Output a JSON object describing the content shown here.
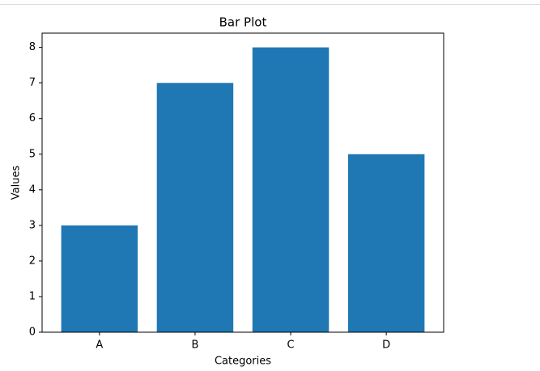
{
  "chart_data": {
    "type": "bar",
    "title": "Bar Plot",
    "x_label": "Categories",
    "y_label": "Values",
    "categories": [
      "A",
      "B",
      "C",
      "D"
    ],
    "values": [
      3,
      7,
      8,
      5
    ],
    "color": "#1f77b4",
    "ylim": [
      0,
      8.4
    ],
    "yticks": [
      0,
      1,
      2,
      3,
      4,
      5,
      6,
      7,
      8
    ],
    "grid": false
  }
}
